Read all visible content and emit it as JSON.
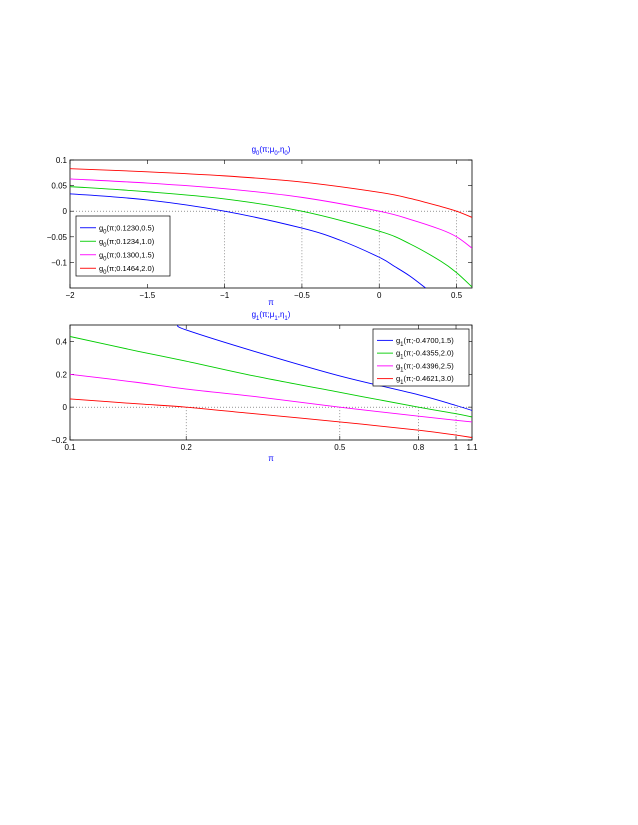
{
  "chart_data": [
    {
      "type": "line",
      "title": {
        "base": "g",
        "sub": "0",
        "args": "(π;μ",
        "args_sub": "0",
        "args_mid": ",η",
        "args_sub2": "0",
        "args_end": ")"
      },
      "xlabel": "π",
      "ylabel": "",
      "xlim": [
        -2,
        0.6
      ],
      "ylim": [
        -0.15,
        0.1
      ],
      "x_ticks": [
        -2,
        -1.5,
        -1,
        -0.5,
        0,
        0.5
      ],
      "x_tick_labels": [
        "−2",
        "−1.5",
        "−1",
        "−0.5",
        "0",
        "0.5"
      ],
      "y_ticks": [
        -0.1,
        -0.05,
        0,
        0.05,
        0.1
      ],
      "y_tick_labels": [
        "−0.1",
        "−0.05",
        "0",
        "0.05",
        "0.1"
      ],
      "reference_line_y": 0,
      "vertical_markers_x": [
        -1,
        -0.5,
        0,
        0.5
      ],
      "legend_position": "bottom-left",
      "grid": false,
      "series": [
        {
          "name": "(π;0.1230,0.5)",
          "legend_base": "g",
          "legend_sub": "0",
          "color": "#0000ff",
          "x": [
            -2,
            -1.5,
            -1,
            -0.5,
            -0.25,
            0,
            0.1,
            0.2,
            0.3
          ],
          "y": [
            0.034,
            0.022,
            0.0,
            -0.033,
            -0.057,
            -0.09,
            -0.108,
            -0.127,
            -0.15
          ]
        },
        {
          "name": "(π;0.1234,1.0)",
          "legend_base": "g",
          "legend_sub": "0",
          "color": "#00cc00",
          "x": [
            -2,
            -1.5,
            -1,
            -0.5,
            0,
            0.2,
            0.4,
            0.5,
            0.6
          ],
          "y": [
            0.048,
            0.038,
            0.024,
            0.0,
            -0.039,
            -0.064,
            -0.098,
            -0.12,
            -0.148
          ]
        },
        {
          "name": "(π;0.1300,1.5)",
          "legend_base": "g",
          "legend_sub": "0",
          "color": "#ff00ff",
          "x": [
            -2,
            -1.5,
            -1,
            -0.5,
            0,
            0.2,
            0.4,
            0.5,
            0.6
          ],
          "y": [
            0.063,
            0.055,
            0.044,
            0.027,
            0.0,
            -0.016,
            -0.036,
            -0.05,
            -0.072
          ]
        },
        {
          "name": "(π;0.1464,2.0)",
          "legend_base": "g",
          "legend_sub": "0",
          "color": "#ff0000",
          "x": [
            -2,
            -1.5,
            -1,
            -0.5,
            0,
            0.2,
            0.4,
            0.5,
            0.6
          ],
          "y": [
            0.083,
            0.077,
            0.069,
            0.057,
            0.037,
            0.025,
            0.009,
            0.0,
            -0.012
          ]
        }
      ]
    },
    {
      "type": "line",
      "title": {
        "base": "g",
        "sub": "1",
        "args": "(π;μ",
        "args_sub": "1",
        "args_mid": ",η",
        "args_sub2": "1",
        "args_end": ")"
      },
      "xlabel": "π",
      "ylabel": "",
      "x_scale": "log",
      "xlim": [
        0.1,
        1.1
      ],
      "ylim": [
        -0.2,
        0.5
      ],
      "x_ticks": [
        0.1,
        0.2,
        0.5,
        0.8,
        1,
        1.1
      ],
      "x_tick_labels": [
        "0.1",
        "0.2",
        "0.5",
        "0.8",
        "1",
        "1.1"
      ],
      "y_ticks": [
        -0.2,
        0,
        0.2,
        0.4
      ],
      "y_tick_labels": [
        "−0.2",
        "0",
        "0.2",
        "0.4"
      ],
      "reference_line_y": 0,
      "vertical_markers_x": [
        0.2,
        0.5,
        0.8,
        1
      ],
      "legend_position": "top-right",
      "grid": false,
      "series": [
        {
          "name": "(π;-0.4700,1.5)",
          "legend_base": "g",
          "legend_sub": "1",
          "color": "#0000ff",
          "x": [
            0.19,
            0.2,
            0.3,
            0.5,
            0.8,
            1.0,
            1.1
          ],
          "y": [
            0.5,
            0.47,
            0.34,
            0.19,
            0.075,
            0.01,
            -0.02
          ]
        },
        {
          "name": "(π;-0.4355,2.0)",
          "legend_base": "g",
          "legend_sub": "1",
          "color": "#00cc00",
          "x": [
            0.1,
            0.15,
            0.2,
            0.3,
            0.5,
            0.8,
            1.0,
            1.1
          ],
          "y": [
            0.43,
            0.34,
            0.28,
            0.19,
            0.09,
            0.0,
            -0.04,
            -0.06
          ]
        },
        {
          "name": "(π;-0.4396,2.5)",
          "legend_base": "g",
          "legend_sub": "1",
          "color": "#ff00ff",
          "x": [
            0.1,
            0.15,
            0.2,
            0.3,
            0.5,
            0.8,
            1.0,
            1.1
          ],
          "y": [
            0.2,
            0.15,
            0.11,
            0.065,
            0.0,
            -0.055,
            -0.08,
            -0.09
          ]
        },
        {
          "name": "(π;-0.4621,3.0)",
          "legend_base": "g",
          "legend_sub": "1",
          "color": "#ff0000",
          "x": [
            0.1,
            0.15,
            0.2,
            0.3,
            0.5,
            0.8,
            1.0,
            1.1
          ],
          "y": [
            0.05,
            0.02,
            0.0,
            -0.04,
            -0.09,
            -0.14,
            -0.17,
            -0.185
          ]
        }
      ]
    }
  ]
}
